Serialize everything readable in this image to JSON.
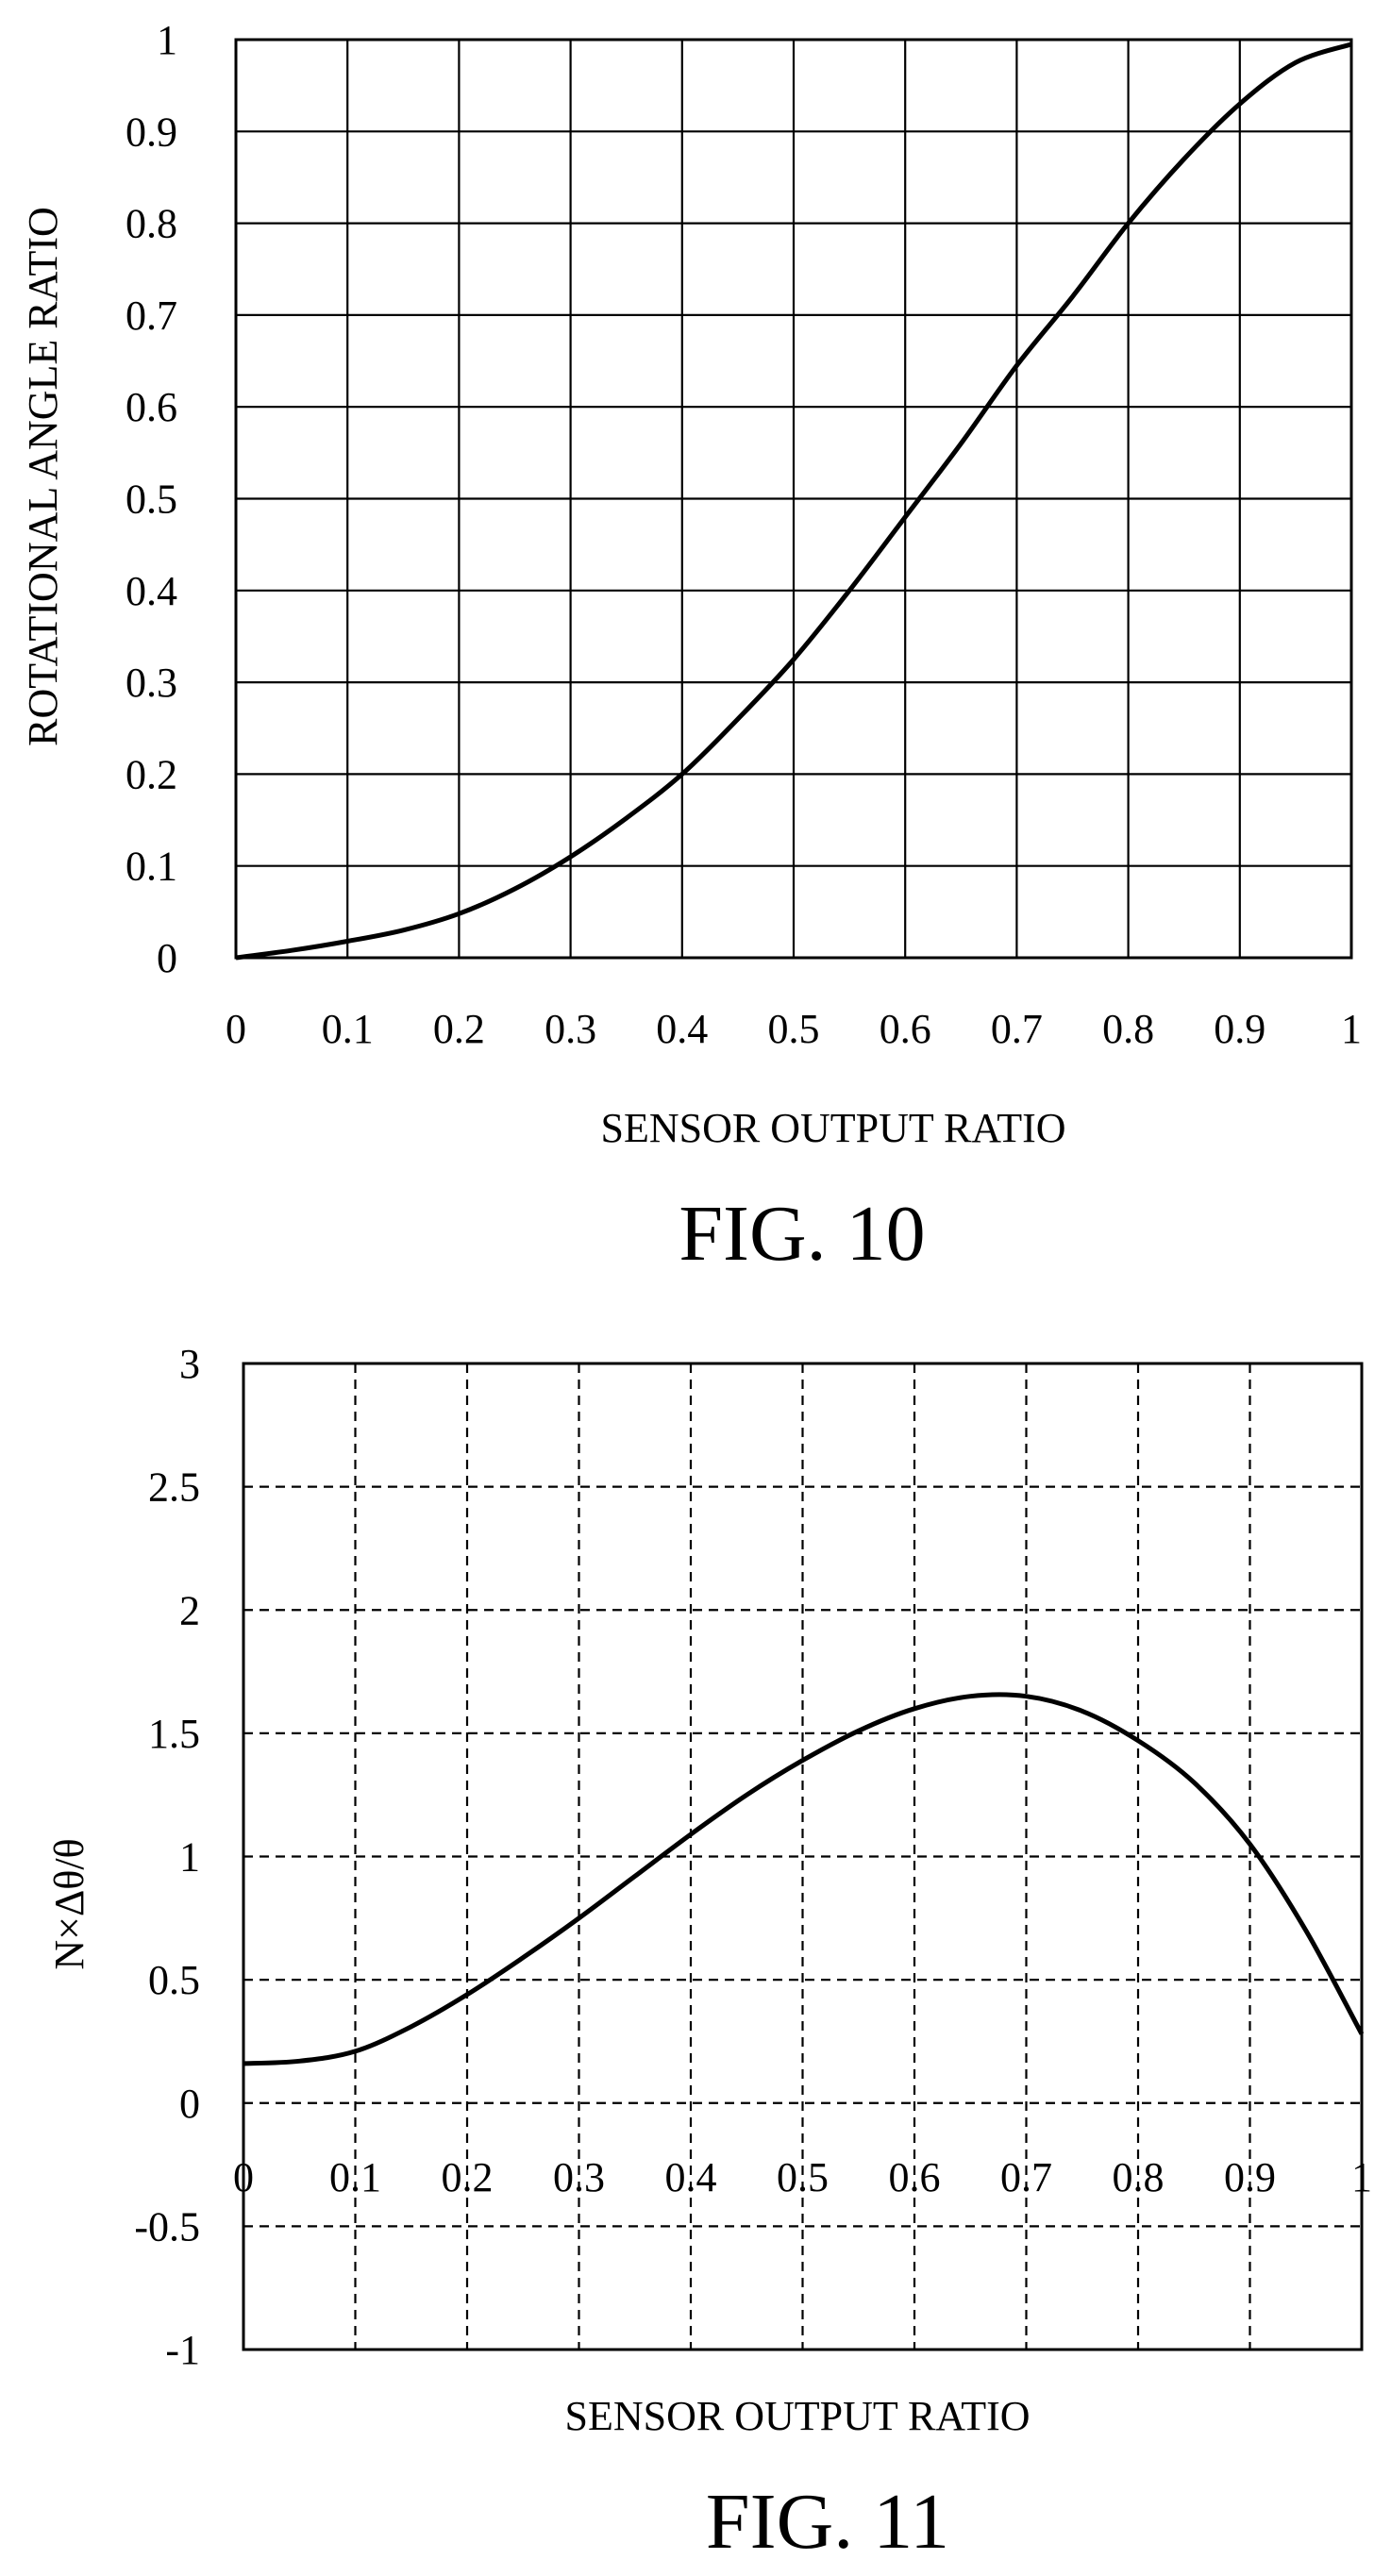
{
  "chart_data": [
    {
      "type": "line",
      "caption": "FIG. 10",
      "xlabel": "SENSOR OUTPUT RATIO",
      "ylabel": "ROTATIONAL ANGLE RATIO",
      "xlim": [
        0,
        1
      ],
      "ylim": [
        0,
        1
      ],
      "x_ticks": [
        "0",
        "0.1",
        "0.2",
        "0.3",
        "0.4",
        "0.5",
        "0.6",
        "0.7",
        "0.8",
        "0.9",
        "1"
      ],
      "y_ticks": [
        "0",
        "0.1",
        "0.2",
        "0.3",
        "0.4",
        "0.5",
        "0.6",
        "0.7",
        "0.8",
        "0.9",
        "1"
      ],
      "grid": "solid",
      "series": [
        {
          "x": [
            0,
            0.05,
            0.1,
            0.15,
            0.2,
            0.25,
            0.3,
            0.35,
            0.4,
            0.45,
            0.5,
            0.55,
            0.6,
            0.65,
            0.7,
            0.75,
            0.8,
            0.85,
            0.9,
            0.95,
            1
          ],
          "y": [
            0,
            0.008,
            0.018,
            0.03,
            0.048,
            0.075,
            0.11,
            0.152,
            0.2,
            0.26,
            0.325,
            0.4,
            0.48,
            0.56,
            0.645,
            0.72,
            0.8,
            0.87,
            0.93,
            0.975,
            0.995
          ]
        }
      ]
    },
    {
      "type": "line",
      "caption": "FIG. 11",
      "xlabel": "SENSOR OUTPUT RATIO",
      "ylabel": "N×Δθ/θ",
      "xlim": [
        0,
        1
      ],
      "ylim": [
        -1,
        3
      ],
      "x_ticks": [
        "0",
        "0.1",
        "0.2",
        "0.3",
        "0.4",
        "0.5",
        "0.6",
        "0.7",
        "0.8",
        "0.9",
        "1"
      ],
      "y_ticks": [
        "-1",
        "-0.5",
        "0",
        "0.5",
        "1",
        "1.5",
        "2",
        "2.5",
        "3"
      ],
      "grid": "dashed",
      "series": [
        {
          "x": [
            0,
            0.05,
            0.1,
            0.15,
            0.2,
            0.25,
            0.3,
            0.35,
            0.4,
            0.45,
            0.5,
            0.55,
            0.6,
            0.65,
            0.7,
            0.75,
            0.8,
            0.85,
            0.9,
            0.95,
            1
          ],
          "y": [
            0.16,
            0.17,
            0.21,
            0.31,
            0.44,
            0.59,
            0.75,
            0.92,
            1.09,
            1.25,
            1.39,
            1.51,
            1.6,
            1.65,
            1.65,
            1.59,
            1.47,
            1.3,
            1.05,
            0.7,
            0.28
          ]
        }
      ]
    }
  ]
}
